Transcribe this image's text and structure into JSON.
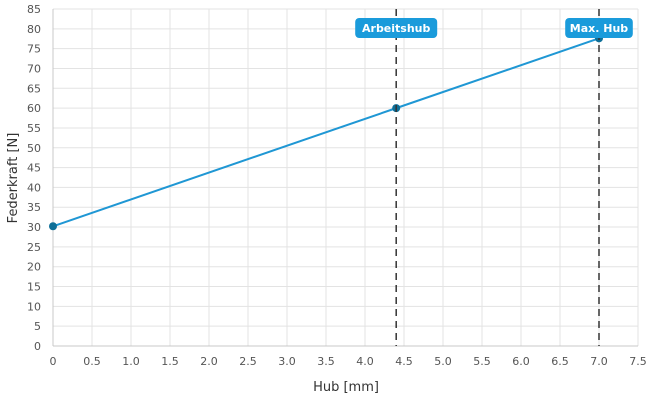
{
  "chart_data": {
    "type": "line",
    "xlabel": "Hub [mm]",
    "ylabel": "Federkraft [N]",
    "xlim": [
      0,
      7.5
    ],
    "ylim": [
      0,
      85
    ],
    "x_ticks": [
      "0",
      "0.5",
      "1.0",
      "1.5",
      "2.0",
      "2.5",
      "3.0",
      "3.5",
      "4.0",
      "4.5",
      "5.0",
      "5.5",
      "6.0",
      "6.5",
      "7.0",
      "7.5"
    ],
    "y_ticks": [
      "0",
      "5",
      "10",
      "15",
      "20",
      "25",
      "30",
      "35",
      "40",
      "45",
      "50",
      "55",
      "60",
      "65",
      "70",
      "75",
      "80",
      "85"
    ],
    "grid": true,
    "legend": "none",
    "series": [
      {
        "x": [
          0,
          4.4,
          7.0
        ],
        "y": [
          30.2,
          60,
          77.6
        ],
        "color": "#1f97d4",
        "marker_color": "#0e6f98"
      }
    ],
    "markers": [
      {
        "label": "Arbeitshub",
        "x": 4.4,
        "color": "#1a9bdb"
      },
      {
        "label": "Max. Hub",
        "x": 7.0,
        "color": "#1a9bdb"
      }
    ]
  }
}
